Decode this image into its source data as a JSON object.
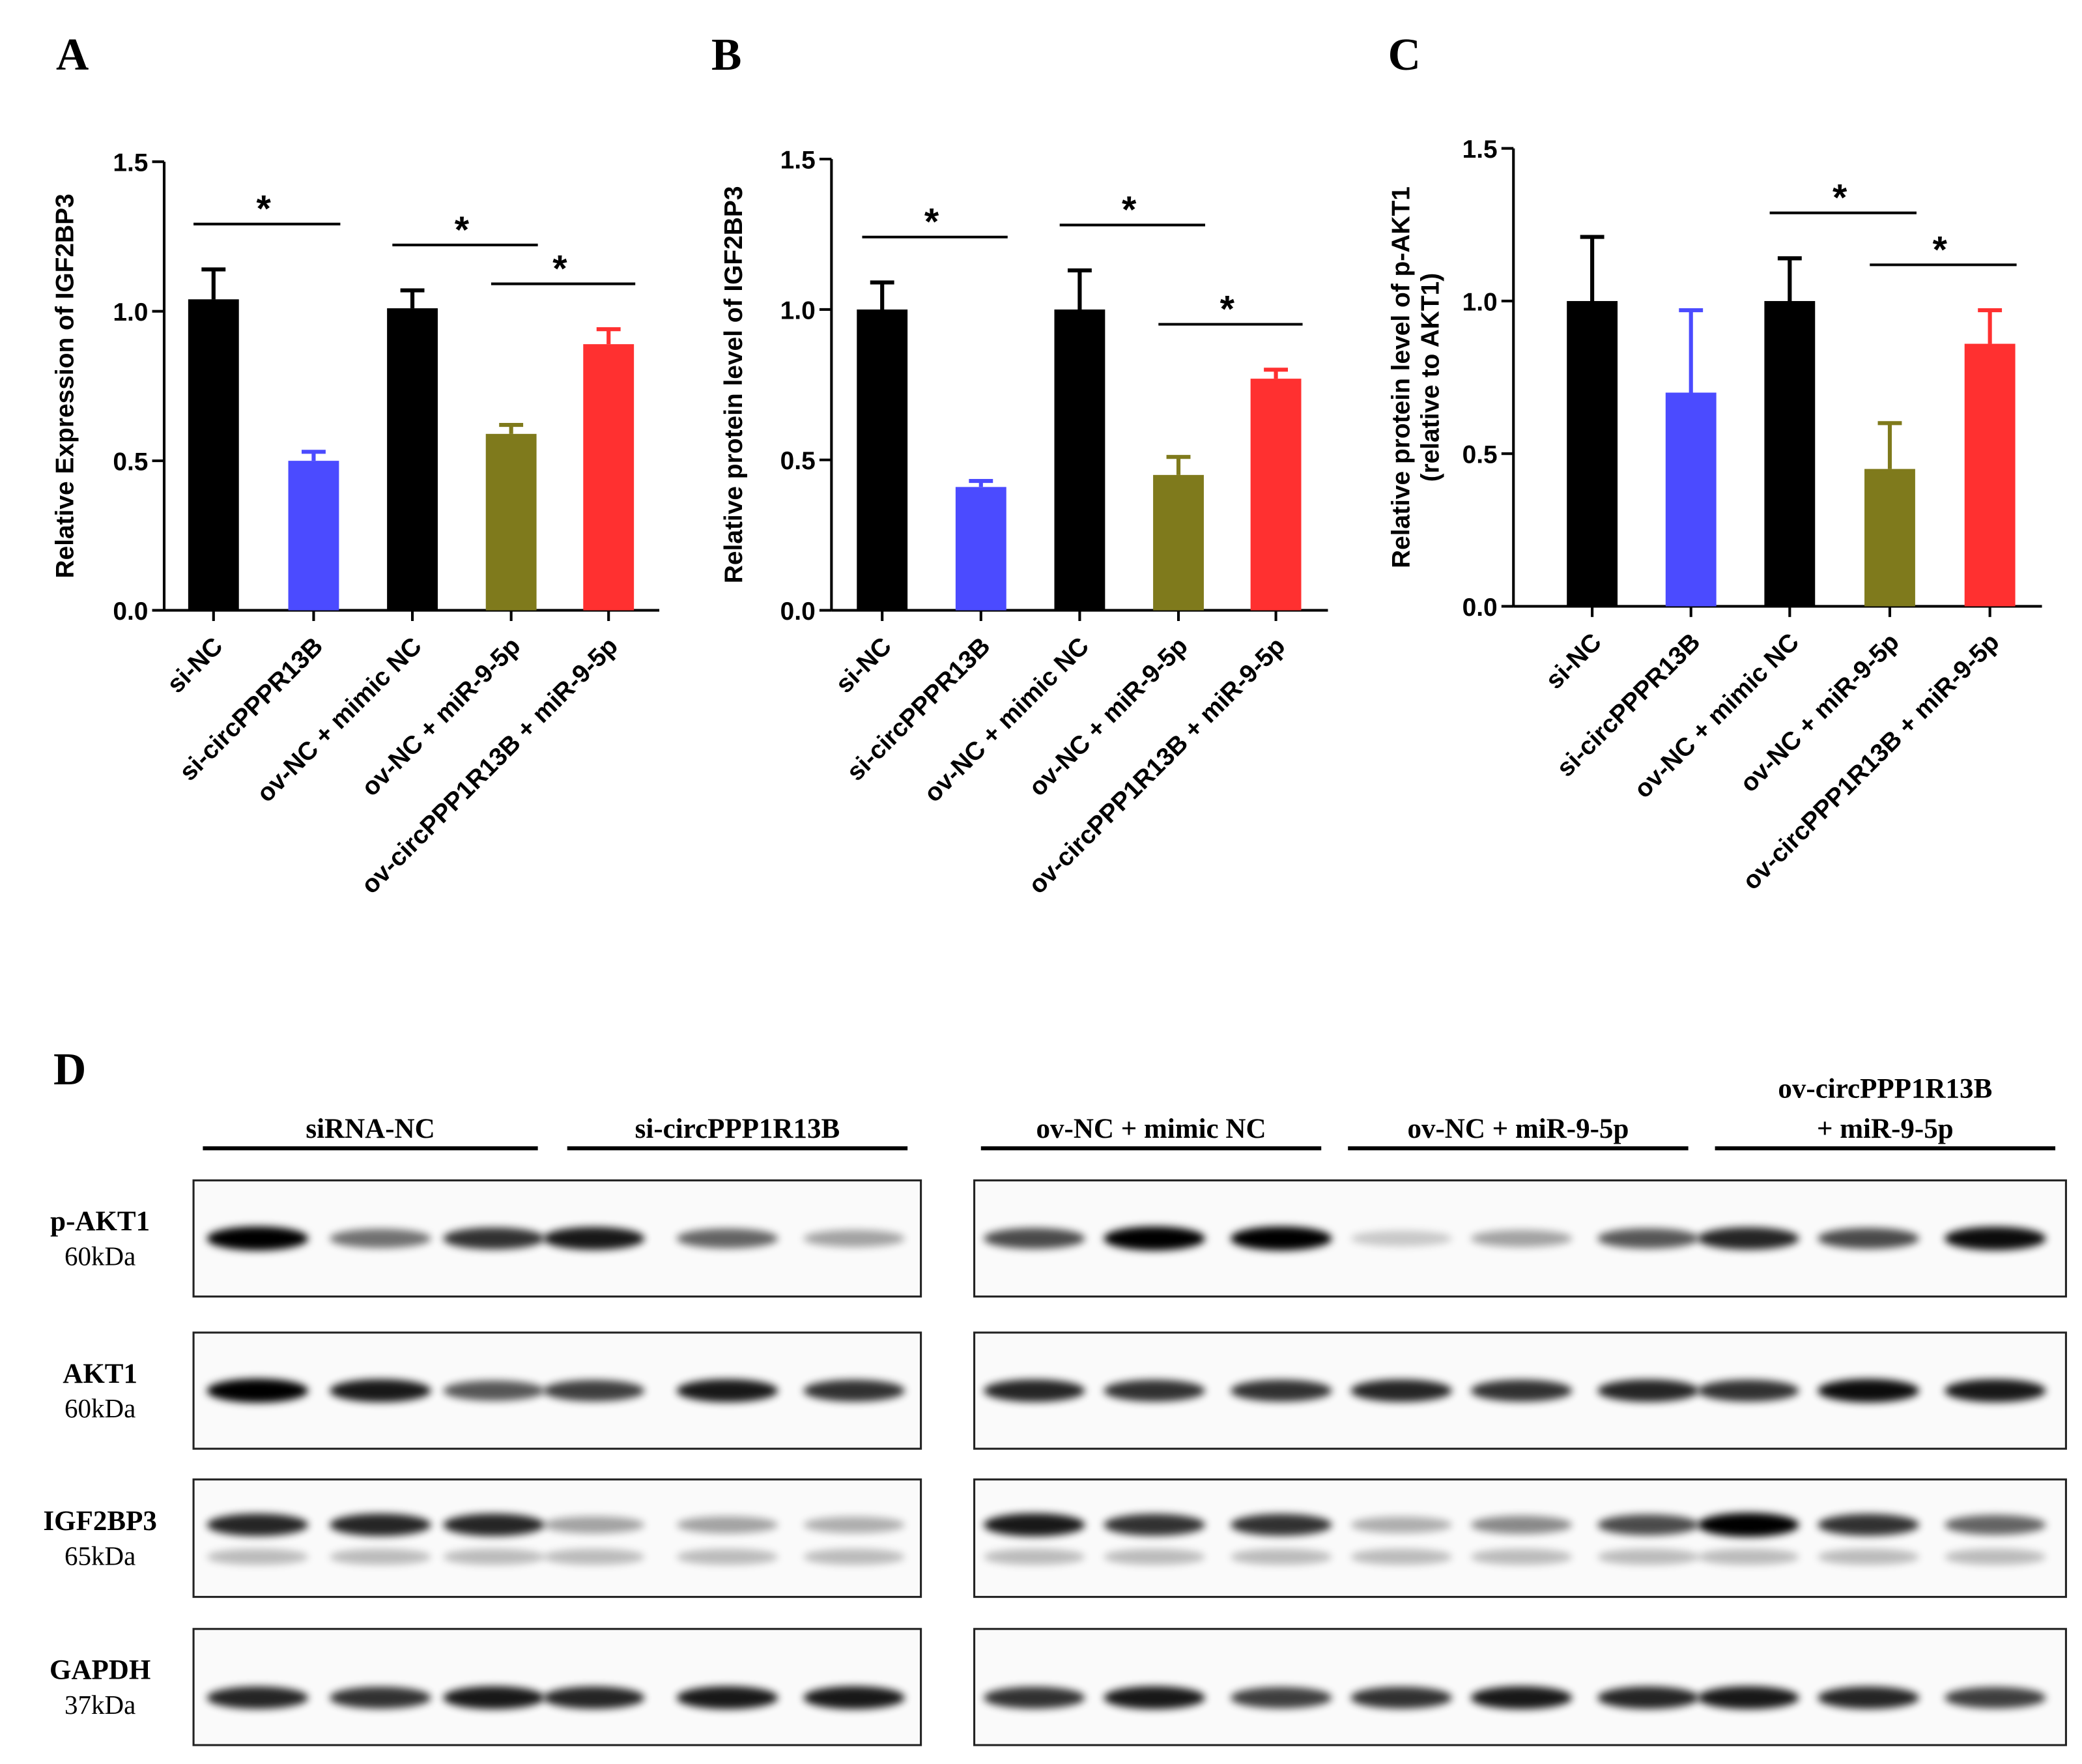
{
  "chart_data": [
    {
      "type": "bar",
      "label": "A",
      "ylabel": "Relative Expression of IGF2BP3",
      "categories": [
        "si-NC",
        "si-circPPPR13B",
        "ov-NC + mimic NC",
        "ov-NC + miR-9-5p",
        "ov-circPPP1R13B + miR-9-5p"
      ],
      "values": [
        1.04,
        0.5,
        1.01,
        0.59,
        0.89
      ],
      "errors": [
        0.1,
        0.03,
        0.06,
        0.03,
        0.05
      ],
      "colors": [
        "#000000",
        "#4b4bff",
        "#7f7a1c",
        "#ff3030"
      ],
      "color_index": [
        0,
        1,
        0,
        2,
        3
      ],
      "ylim": [
        0,
        1.5
      ],
      "yticks": [
        {
          "value": 0,
          "label": "0.0"
        },
        {
          "value": 0.5,
          "label": "0.5"
        },
        {
          "value": 1,
          "label": "1.0"
        },
        {
          "value": 1.5,
          "label": "1.5"
        }
      ],
      "significance": [
        {
          "text": "*",
          "from": 0,
          "to": 1
        },
        {
          "text": "*",
          "from": 2,
          "to": 3
        },
        {
          "text": "*",
          "from": 3,
          "to": 4
        }
      ]
    },
    {
      "type": "bar",
      "label": "B",
      "ylabel": "Relative protein level of IGF2BP3",
      "categories": [
        "si-NC",
        "si-circPPPR13B",
        "ov-NC + mimic NC",
        "ov-NC + miR-9-5p",
        "ov-circPPP1R13B + miR-9-5p"
      ],
      "values": [
        1.0,
        0.41,
        1.0,
        0.45,
        0.77
      ],
      "errors": [
        0.09,
        0.02,
        0.13,
        0.06,
        0.03
      ],
      "colors": [
        "#000000",
        "#4b4bff",
        "#7f7a1c",
        "#ff3030"
      ],
      "color_index": [
        0,
        1,
        0,
        2,
        3
      ],
      "ylim": [
        0,
        1.5
      ],
      "yticks": [
        {
          "value": 0,
          "label": "0.0"
        },
        {
          "value": 0.5,
          "label": "0.5"
        },
        {
          "value": 1,
          "label": "1.0"
        },
        {
          "value": 1.5,
          "label": "1.5"
        }
      ],
      "significance": [
        {
          "text": "*",
          "from": 0,
          "to": 1
        },
        {
          "text": "*",
          "from": 2,
          "to": 3
        },
        {
          "text": "*",
          "from": 3,
          "to": 4
        }
      ]
    },
    {
      "type": "bar",
      "label": "C",
      "ylabel": "Relative protein level of p-AKT1",
      "ylabel_sub": "(relative to AKT1)",
      "categories": [
        "si-NC",
        "si-circPPPR13B",
        "ov-NC + mimic NC",
        "ov-NC + miR-9-5p",
        "ov-circPPP1R13B + miR-9-5p"
      ],
      "values": [
        1.0,
        0.7,
        1.0,
        0.45,
        0.86
      ],
      "errors": [
        0.21,
        0.27,
        0.14,
        0.15,
        0.11
      ],
      "colors": [
        "#000000",
        "#4b4bff",
        "#7f7a1c",
        "#ff3030"
      ],
      "color_index": [
        0,
        1,
        0,
        2,
        3
      ],
      "ylim": [
        0,
        1.5
      ],
      "yticks": [
        {
          "value": 0,
          "label": "0.0"
        },
        {
          "value": 0.5,
          "label": "0.5"
        },
        {
          "value": 1,
          "label": "1.0"
        },
        {
          "value": 1.5,
          "label": "1.5"
        }
      ],
      "significance": [
        {
          "text": "*",
          "from": 2,
          "to": 3
        },
        {
          "text": "*",
          "from": 3,
          "to": 4
        }
      ]
    }
  ],
  "blot": {
    "label": "D",
    "groups": [
      {
        "lines": [
          "siRNA-NC"
        ]
      },
      {
        "lines": [
          "si-circPPP1R13B"
        ]
      },
      {
        "lines": [
          "ov-NC + mimic NC"
        ]
      },
      {
        "lines": [
          "ov-NC + miR-9-5p"
        ]
      },
      {
        "lines": [
          "ov-circPPP1R13B",
          "+ miR-9-5p"
        ]
      }
    ],
    "rows": [
      {
        "name": "p-AKT1",
        "size": "60kDa"
      },
      {
        "name": "AKT1",
        "size": "60kDa"
      },
      {
        "name": "IGF2BP3",
        "size": "65kDa"
      },
      {
        "name": "GAPDH",
        "size": "37kDa"
      }
    ]
  }
}
